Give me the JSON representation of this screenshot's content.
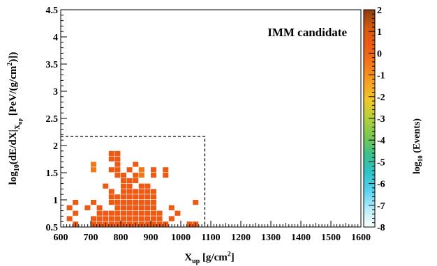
{
  "chart_data": {
    "type": "heatmap",
    "title": "",
    "annotation": "IMM candidate",
    "xlabel": {
      "main": "X",
      "sub": "up",
      "rest": " [g/cm",
      "sup": "2",
      "end": "]"
    },
    "ylabel": {
      "p1": "log",
      "p1sub": "10",
      "p2": "(dE/dX|",
      "p2sub": "X",
      "p2subsub": "up",
      "p3": " [PeV/(g/cm",
      "p3sup": "2",
      "p4": ")])"
    },
    "zlabel": {
      "main": "log",
      "sub": "10",
      "rest": " (Events)"
    },
    "xlim": [
      600,
      1600
    ],
    "ylim": [
      0.5,
      4.5
    ],
    "zlim": [
      -8,
      2
    ],
    "xticks": [
      "600",
      "700",
      "800",
      "900",
      "1000",
      "1100",
      "1200",
      "1300",
      "1400",
      "1500",
      "1600"
    ],
    "yticks": [
      "0.5",
      "1",
      "1.5",
      "2",
      "2.5",
      "3",
      "3.5",
      "4",
      "4.5"
    ],
    "zticks": [
      "-8",
      "-7",
      "-6",
      "-5",
      "-4",
      "-3",
      "-2",
      "-1",
      "0",
      "1",
      "2"
    ],
    "bin_width_x": 20,
    "bin_height_y": 0.1,
    "cut_region": {
      "x": [
        600,
        1080
      ],
      "y": [
        0.5,
        2.17
      ]
    },
    "cells": [
      [
        760,
        1.8,
        0.1
      ],
      [
        780,
        1.8,
        0.1
      ],
      [
        760,
        1.7,
        0.1
      ],
      [
        780,
        1.7,
        0.1
      ],
      [
        780,
        1.6,
        0.1
      ],
      [
        840,
        1.6,
        0.3
      ],
      [
        700,
        1.6,
        -0.1
      ],
      [
        700,
        1.5,
        -0.1
      ],
      [
        760,
        1.5,
        0.3
      ],
      [
        780,
        1.5,
        0.1
      ],
      [
        820,
        1.5,
        0.1
      ],
      [
        860,
        1.5,
        -0.1
      ],
      [
        900,
        1.5,
        0.1
      ],
      [
        940,
        1.5,
        0.1
      ],
      [
        780,
        1.4,
        0.1
      ],
      [
        800,
        1.4,
        0.1
      ],
      [
        840,
        1.4,
        0.1
      ],
      [
        860,
        1.4,
        -0.1
      ],
      [
        900,
        1.4,
        0.1
      ],
      [
        940,
        1.4,
        0.1
      ],
      [
        800,
        1.3,
        0.1
      ],
      [
        820,
        1.3,
        0.1
      ],
      [
        840,
        1.3,
        0.1
      ],
      [
        740,
        1.2,
        0.1
      ],
      [
        800,
        1.2,
        0.1
      ],
      [
        820,
        1.2,
        0.1
      ],
      [
        860,
        1.2,
        0.1
      ],
      [
        880,
        1.2,
        0.1
      ],
      [
        760,
        1.1,
        0.1
      ],
      [
        800,
        1.1,
        0.1
      ],
      [
        820,
        1.1,
        0.3
      ],
      [
        840,
        1.1,
        0.1
      ],
      [
        860,
        1.1,
        0.3
      ],
      [
        880,
        1.1,
        0.3
      ],
      [
        900,
        1.1,
        0.1
      ],
      [
        760,
        1.0,
        0.1
      ],
      [
        780,
        1.0,
        0.1
      ],
      [
        800,
        1.0,
        0.1
      ],
      [
        820,
        1.0,
        0.1
      ],
      [
        840,
        1.0,
        0.3
      ],
      [
        860,
        1.0,
        0.3
      ],
      [
        880,
        1.0,
        0.3
      ],
      [
        900,
        1.0,
        0.1
      ],
      [
        640,
        0.9,
        0.1
      ],
      [
        700,
        0.9,
        0.1
      ],
      [
        760,
        0.9,
        0.1
      ],
      [
        780,
        0.9,
        0.3
      ],
      [
        800,
        0.9,
        0.3
      ],
      [
        820,
        0.9,
        0.3
      ],
      [
        840,
        0.9,
        0.3
      ],
      [
        860,
        0.9,
        0.3
      ],
      [
        880,
        0.9,
        0.3
      ],
      [
        900,
        0.9,
        0.3
      ],
      [
        1040,
        0.9,
        0.1
      ],
      [
        620,
        0.8,
        0.1
      ],
      [
        680,
        0.8,
        0.1
      ],
      [
        720,
        0.8,
        0.1
      ],
      [
        780,
        0.8,
        0.3
      ],
      [
        800,
        0.8,
        0.3
      ],
      [
        820,
        0.8,
        0.6
      ],
      [
        840,
        0.8,
        0.3
      ],
      [
        860,
        0.8,
        0.3
      ],
      [
        880,
        0.8,
        0.3
      ],
      [
        900,
        0.8,
        0.3
      ],
      [
        960,
        0.8,
        0.1
      ],
      [
        640,
        0.7,
        0.1
      ],
      [
        720,
        0.7,
        0.1
      ],
      [
        740,
        0.7,
        0.3
      ],
      [
        760,
        0.7,
        0.3
      ],
      [
        780,
        0.7,
        0.3
      ],
      [
        800,
        0.7,
        0.6
      ],
      [
        820,
        0.7,
        0.6
      ],
      [
        840,
        0.7,
        0.6
      ],
      [
        860,
        0.7,
        0.3
      ],
      [
        880,
        0.7,
        0.3
      ],
      [
        900,
        0.7,
        0.3
      ],
      [
        920,
        0.7,
        0.1
      ],
      [
        980,
        0.7,
        0.1
      ],
      [
        620,
        0.6,
        0.1
      ],
      [
        700,
        0.6,
        0.1
      ],
      [
        720,
        0.6,
        0.3
      ],
      [
        740,
        0.6,
        0.3
      ],
      [
        760,
        0.6,
        0.3
      ],
      [
        780,
        0.6,
        0.6
      ],
      [
        800,
        0.6,
        0.6
      ],
      [
        820,
        0.6,
        0.6
      ],
      [
        840,
        0.6,
        0.6
      ],
      [
        860,
        0.6,
        0.6
      ],
      [
        880,
        0.6,
        0.3
      ],
      [
        900,
        0.6,
        0.3
      ],
      [
        920,
        0.6,
        0.3
      ],
      [
        960,
        0.6,
        0.1
      ],
      [
        640,
        0.5,
        0.1
      ],
      [
        700,
        0.5,
        0.3
      ],
      [
        720,
        0.5,
        0.3
      ],
      [
        740,
        0.5,
        0.3
      ],
      [
        760,
        0.5,
        0.6
      ],
      [
        780,
        0.5,
        0.6
      ],
      [
        800,
        0.5,
        0.6
      ],
      [
        820,
        0.5,
        0.6
      ],
      [
        840,
        0.5,
        0.6
      ],
      [
        860,
        0.5,
        0.6
      ],
      [
        880,
        0.5,
        0.6
      ],
      [
        900,
        0.5,
        0.3
      ],
      [
        920,
        0.5,
        0.3
      ],
      [
        940,
        0.5,
        0.1
      ],
      [
        1020,
        0.5,
        0.1
      ],
      [
        1040,
        0.5,
        0.1
      ]
    ],
    "colormap": [
      "#ffffff",
      "#b4eefa",
      "#5ad2f0",
      "#2cc4c8",
      "#3cc08c",
      "#78c850",
      "#b4d03c",
      "#f0c828",
      "#f8a020",
      "#f27818",
      "#ee5a14",
      "#d45a10",
      "#8c3c0c"
    ],
    "grid": false,
    "colorbar": "right"
  }
}
